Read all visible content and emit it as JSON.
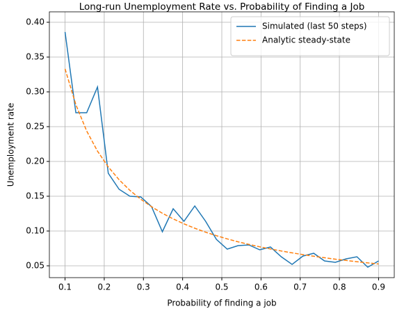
{
  "chart_data": {
    "type": "line",
    "title": "Long-run Unemployment Rate vs. Probability of Finding a Job",
    "xlabel": "Probability of finding a job",
    "ylabel": "Unemployment rate",
    "x": [
      0.1,
      0.1276,
      0.1552,
      0.1828,
      0.2103,
      0.2379,
      0.2655,
      0.2931,
      0.3207,
      0.3483,
      0.3759,
      0.4034,
      0.431,
      0.4586,
      0.4862,
      0.5138,
      0.5414,
      0.569,
      0.5966,
      0.6241,
      0.6517,
      0.6793,
      0.7069,
      0.7345,
      0.7621,
      0.7897,
      0.8172,
      0.8448,
      0.8724,
      0.9
    ],
    "series": [
      {
        "name": "Simulated (last 50 steps)",
        "color": "#1f77b4",
        "dash": "solid",
        "values": [
          0.386,
          0.27,
          0.27,
          0.307,
          0.183,
          0.16,
          0.15,
          0.149,
          0.135,
          0.099,
          0.132,
          0.114,
          0.136,
          0.114,
          0.088,
          0.074,
          0.079,
          0.08,
          0.073,
          0.077,
          0.063,
          0.052,
          0.064,
          0.068,
          0.057,
          0.055,
          0.06,
          0.063,
          0.048,
          0.057
        ]
      },
      {
        "name": "Analytic steady-state",
        "color": "#ff7f0e",
        "dash": "dashed",
        "values": [
          0.333,
          0.2816,
          0.2437,
          0.2148,
          0.1921,
          0.1737,
          0.1584,
          0.1457,
          0.1349,
          0.1255,
          0.1174,
          0.1103,
          0.104,
          0.0983,
          0.0933,
          0.0887,
          0.0845,
          0.0808,
          0.0773,
          0.0742,
          0.0713,
          0.0686,
          0.0661,
          0.0637,
          0.0616,
          0.0595,
          0.0577,
          0.0559,
          0.0542,
          0.0526
        ]
      }
    ],
    "xlim": [
      0.06,
      0.94
    ],
    "ylim": [
      0.033,
      0.415
    ],
    "xticks": [
      0.1,
      0.2,
      0.3,
      0.4,
      0.5,
      0.6,
      0.7,
      0.8,
      0.9
    ],
    "yticks": [
      0.05,
      {
        "value": 0.1,
        "label": "0.10"
      },
      0.15,
      {
        "value": 0.2,
        "label": "0.20"
      },
      0.25,
      {
        "value": 0.3,
        "label": "0.30"
      },
      0.35,
      {
        "value": 0.4,
        "label": "0.40"
      }
    ],
    "grid": true,
    "legend": "upper right"
  }
}
